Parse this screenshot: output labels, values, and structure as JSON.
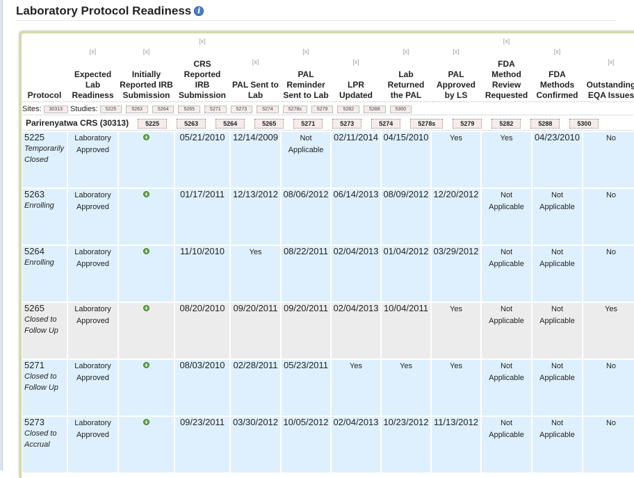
{
  "title": "Laboratory Protocol Readiness",
  "remove_label": "[x]",
  "columns": [
    "Protocol",
    "Expected Lab Readiness",
    "Initially Reported IRB Submission",
    "CRS Reported IRB Submission",
    "PAL Sent to Lab",
    "PAL Reminder Sent to Lab",
    "LPR Updated",
    "Lab Returned the PAL",
    "PAL Approved by LS",
    "FDA Method Review Requested",
    "FDA Methods Confirmed",
    "Outstanding EQA Issues"
  ],
  "filters": {
    "sites_label": "Sites:",
    "sites": [
      "30313"
    ],
    "studies_label": "Studies:",
    "studies": [
      "5225",
      "5263",
      "5264",
      "5265",
      "5271",
      "5273",
      "5274",
      "5278s",
      "5279",
      "5282",
      "5288",
      "5300"
    ]
  },
  "site_group": {
    "label": "Parirenyatwa CRS (30313)",
    "studies": [
      "5225",
      "5263",
      "5264",
      "5265",
      "5271",
      "5273",
      "5274",
      "5278s",
      "5279",
      "5282",
      "5288",
      "5300"
    ]
  },
  "rows": [
    {
      "protocol": "5225",
      "status": "Temporarily Closed",
      "cells": [
        "Laboratory Approved",
        "+",
        "05/21/2010",
        "12/14/2009",
        "Not Applicable",
        "02/11/2014",
        "04/15/2010",
        "Yes",
        "Yes",
        "04/23/2010",
        "No"
      ]
    },
    {
      "protocol": "5263",
      "status": "Enrolling",
      "cells": [
        "Laboratory Approved",
        "+",
        "01/17/2011",
        "12/13/2012",
        "08/06/2012",
        "06/14/2013",
        "08/09/2012",
        "12/20/2012",
        "Not Applicable",
        "Not Applicable",
        "No"
      ]
    },
    {
      "protocol": "5264",
      "status": "Enrolling",
      "cells": [
        "Laboratory Approved",
        "+",
        "11/10/2010",
        "Yes",
        "08/22/2011",
        "02/04/2013",
        "01/04/2012",
        "03/29/2012",
        "Not Applicable",
        "Not Applicable",
        "No"
      ]
    },
    {
      "protocol": "5265",
      "status": "Closed to Follow Up",
      "gray": true,
      "cells": [
        "Laboratory Approved",
        "+",
        "08/20/2010",
        "09/20/2011",
        "09/20/2011",
        "02/04/2013",
        "10/04/2011",
        "Yes",
        "Not Applicable",
        "Not Applicable",
        "Yes"
      ]
    },
    {
      "protocol": "5271",
      "status": "Closed to Follow Up",
      "cells": [
        "Laboratory Approved",
        "+",
        "08/03/2010",
        "02/28/2011",
        "05/23/2011",
        "Yes",
        "Yes",
        "Yes",
        "Not Applicable",
        "Not Applicable",
        "No"
      ]
    },
    {
      "protocol": "5273",
      "status": "Closed to Accrual",
      "cells": [
        "Laboratory Approved",
        "+",
        "09/23/2011",
        "03/30/2012",
        "10/05/2012",
        "02/04/2013",
        "10/23/2012",
        "11/13/2012",
        "Not Applicable",
        "Not Applicable",
        "No"
      ]
    }
  ],
  "colors": {
    "row": "#def0fd",
    "row_closed": "#ececec",
    "panel_border": "#d7d9a8",
    "icon_add": "#6aa84f"
  }
}
